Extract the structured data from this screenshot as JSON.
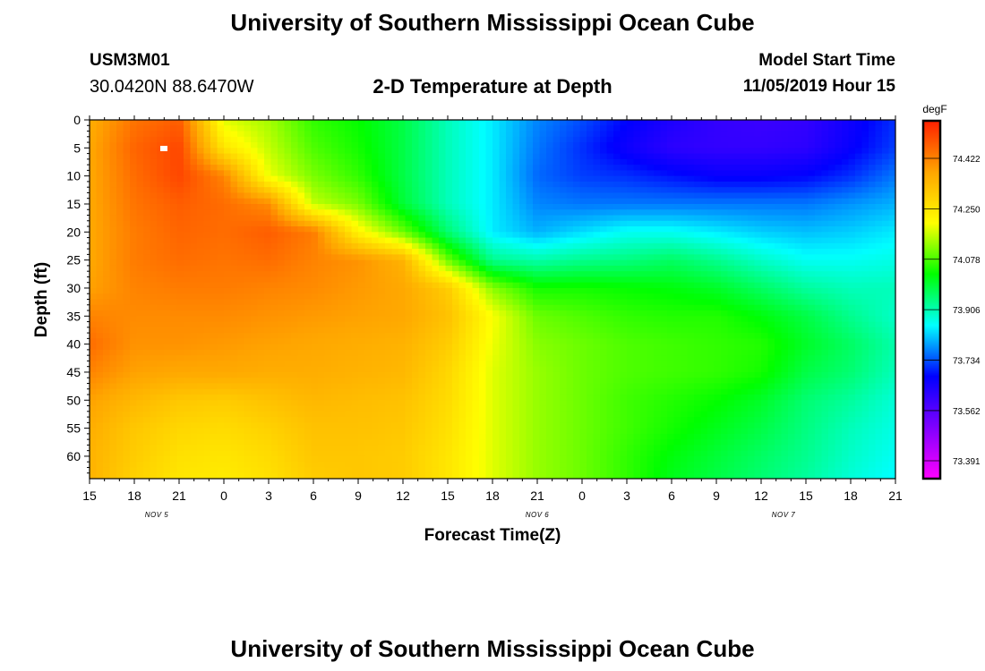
{
  "page": {
    "title_top": "University of Southern Mississippi Ocean Cube",
    "title_bottom": "University of Southern Mississippi Ocean Cube",
    "station_id": "USM3M01",
    "coordinates": "30.0420N 88.6470W",
    "model_start_label": "Model Start Time",
    "model_start_value": "11/05/2019 Hour 15"
  },
  "chart_data": {
    "type": "heatmap",
    "title": "2-D Temperature at Depth",
    "xlabel": "Forecast Time(Z)",
    "ylabel": "Depth (ft)",
    "x_ticks": [
      "15",
      "18",
      "21",
      "0",
      "3",
      "6",
      "9",
      "12",
      "15",
      "18",
      "21",
      "0",
      "3",
      "6",
      "9",
      "12",
      "15",
      "18",
      "21"
    ],
    "date_labels": [
      {
        "label": "NOV 5",
        "at_tick": 1.5
      },
      {
        "label": "NOV 6",
        "at_tick": 10
      },
      {
        "label": "NOV 7",
        "at_tick": 15.5
      }
    ],
    "x_range_hours": [
      0,
      54
    ],
    "y_ticks": [
      0,
      5,
      10,
      15,
      20,
      25,
      30,
      35,
      40,
      45,
      50,
      55,
      60
    ],
    "ylim": [
      0,
      64
    ],
    "colorbar": {
      "unit": "degF",
      "ticks": [
        74.422,
        74.25,
        74.078,
        73.906,
        73.734,
        73.562,
        73.391
      ],
      "range": [
        73.33,
        74.55
      ],
      "colors": [
        "#ff00ff",
        "#8000ff",
        "#0000ff",
        "#00ffff",
        "#00ff00",
        "#ffff00",
        "#ffa500",
        "#ff2000"
      ]
    },
    "grid_hours": [
      0,
      3,
      6,
      9,
      12,
      15,
      18,
      21,
      24,
      27,
      30,
      33,
      36,
      39,
      42,
      45,
      48,
      51,
      54
    ],
    "grid_depths": [
      0,
      5,
      10,
      15,
      20,
      25,
      30,
      35,
      40,
      45,
      50,
      55,
      60,
      64
    ],
    "grid_values": [
      [
        74.36,
        74.44,
        74.47,
        74.18,
        74.14,
        74.06,
        74.03,
        73.98,
        73.9,
        73.84,
        73.77,
        73.73,
        73.68,
        73.64,
        73.61,
        73.6,
        73.61,
        73.66,
        73.71
      ],
      [
        74.37,
        74.46,
        74.5,
        74.25,
        74.16,
        74.08,
        74.04,
        73.98,
        73.9,
        73.84,
        73.76,
        73.71,
        73.66,
        73.62,
        73.61,
        73.61,
        73.62,
        73.67,
        73.72
      ],
      [
        74.37,
        74.45,
        74.5,
        74.42,
        74.19,
        74.11,
        74.06,
        73.98,
        73.9,
        73.84,
        73.75,
        73.72,
        73.71,
        73.69,
        73.67,
        73.67,
        73.68,
        73.71,
        73.76
      ],
      [
        74.37,
        74.44,
        74.47,
        74.45,
        74.41,
        74.16,
        74.11,
        73.99,
        73.9,
        73.84,
        73.77,
        73.76,
        73.76,
        73.76,
        73.76,
        73.76,
        73.76,
        73.78,
        73.8
      ],
      [
        74.37,
        74.43,
        74.46,
        74.45,
        74.47,
        74.43,
        74.22,
        74.1,
        73.95,
        73.84,
        73.8,
        73.83,
        73.86,
        73.86,
        73.84,
        73.82,
        73.81,
        73.82,
        73.84
      ],
      [
        74.37,
        74.43,
        74.45,
        74.44,
        74.45,
        74.42,
        74.4,
        74.35,
        74.1,
        73.93,
        73.91,
        73.93,
        73.94,
        73.96,
        73.93,
        73.89,
        73.86,
        73.86,
        73.87
      ],
      [
        74.38,
        74.42,
        74.43,
        74.43,
        74.42,
        74.41,
        74.39,
        74.37,
        74.3,
        74.12,
        74.04,
        74.04,
        74.03,
        74.02,
        74.0,
        73.96,
        73.92,
        73.9,
        73.9
      ],
      [
        74.42,
        74.41,
        74.41,
        74.41,
        74.4,
        74.39,
        74.38,
        74.37,
        74.32,
        74.2,
        74.1,
        74.08,
        74.06,
        74.05,
        74.05,
        74.02,
        73.98,
        73.93,
        73.89
      ],
      [
        74.45,
        74.4,
        74.4,
        74.39,
        74.38,
        74.37,
        74.36,
        74.35,
        74.3,
        74.19,
        74.12,
        74.1,
        74.08,
        74.07,
        74.06,
        74.05,
        74.0,
        73.96,
        73.91
      ],
      [
        74.42,
        74.38,
        74.37,
        74.37,
        74.36,
        74.36,
        74.35,
        74.34,
        74.28,
        74.18,
        74.13,
        74.1,
        74.08,
        74.07,
        74.06,
        74.04,
        73.98,
        73.95,
        73.9
      ],
      [
        74.38,
        74.34,
        74.31,
        74.3,
        74.32,
        74.34,
        74.33,
        74.32,
        74.27,
        74.18,
        74.13,
        74.1,
        74.07,
        74.05,
        74.03,
        74.0,
        73.95,
        73.92,
        73.88
      ],
      [
        74.36,
        74.31,
        74.28,
        74.27,
        74.29,
        74.32,
        74.32,
        74.31,
        74.26,
        74.18,
        74.13,
        74.1,
        74.07,
        74.04,
        74.01,
        73.98,
        73.94,
        73.9,
        73.87
      ],
      [
        74.35,
        74.3,
        74.26,
        74.25,
        74.27,
        74.31,
        74.31,
        74.3,
        74.25,
        74.18,
        74.13,
        74.1,
        74.06,
        74.02,
        73.99,
        73.96,
        73.93,
        73.89,
        73.86
      ],
      [
        74.35,
        74.29,
        74.25,
        74.24,
        74.26,
        74.3,
        74.31,
        74.3,
        74.25,
        74.18,
        74.13,
        74.1,
        74.06,
        74.01,
        73.98,
        73.95,
        73.92,
        73.88,
        73.85
      ]
    ]
  }
}
